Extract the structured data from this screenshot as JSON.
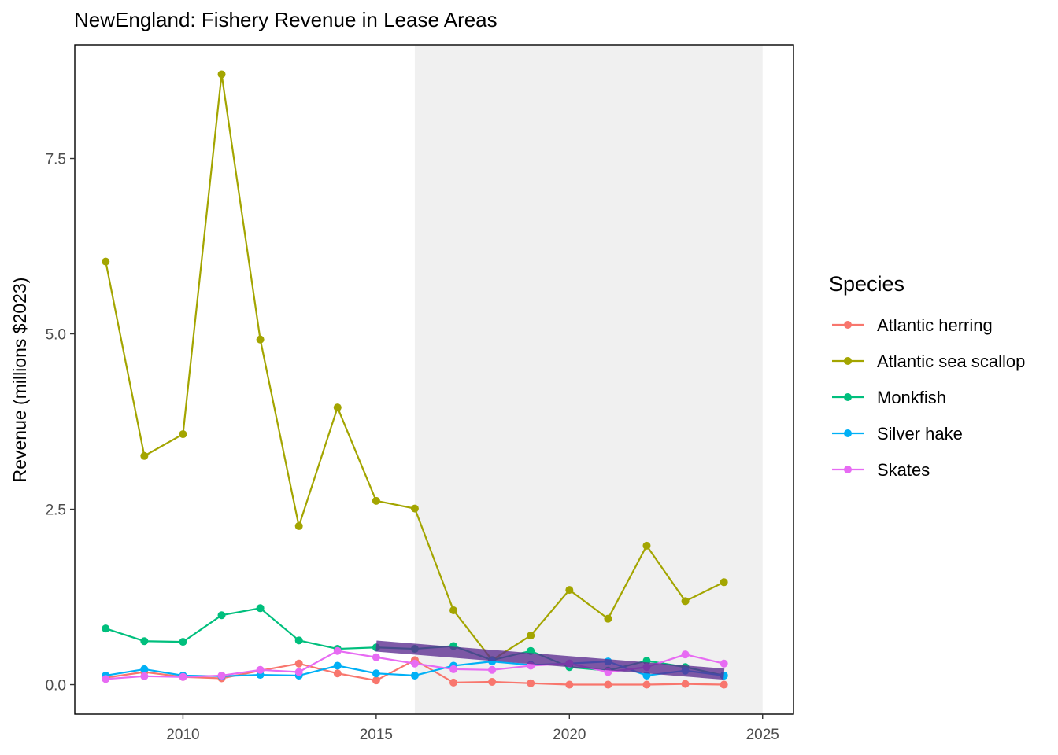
{
  "chart_data": {
    "type": "line",
    "title": "NewEngland: Fishery Revenue in Lease Areas",
    "xlabel": "",
    "ylabel": "Revenue (millions $2023)",
    "xlim": [
      2007.2,
      2025.8
    ],
    "ylim": [
      -0.42,
      9.12
    ],
    "x_ticks": [
      2010,
      2015,
      2020,
      2025
    ],
    "x_tick_labels": [
      "2010",
      "2015",
      "2020",
      "2025"
    ],
    "y_ticks": [
      0,
      2.5,
      5,
      7.5
    ],
    "y_tick_labels": [
      "0.0",
      "2.5",
      "5.0",
      "7.5"
    ],
    "shaded_region": {
      "x_start": 2016,
      "x_end": 2025,
      "color": "#f0f0f0"
    },
    "legend": {
      "title": "Species",
      "position": "right"
    },
    "x": [
      2008,
      2009,
      2010,
      2011,
      2012,
      2013,
      2014,
      2015,
      2016,
      2017,
      2018,
      2019,
      2020,
      2021,
      2022,
      2023,
      2024
    ],
    "series": [
      {
        "name": "Atlantic herring",
        "color": "#F8766D",
        "values": [
          0.1,
          0.18,
          0.11,
          0.09,
          0.2,
          0.3,
          0.16,
          0.06,
          0.35,
          0.03,
          0.04,
          0.02,
          0.0,
          0.0,
          0.0,
          0.01,
          0.0
        ]
      },
      {
        "name": "Atlantic sea scallop",
        "color": "#A3A500",
        "values": [
          6.03,
          3.26,
          3.57,
          8.7,
          4.92,
          2.26,
          3.95,
          2.62,
          2.51,
          1.06,
          0.35,
          0.7,
          1.35,
          0.94,
          1.98,
          1.19,
          1.46
        ]
      },
      {
        "name": "Monkfish",
        "color": "#00BF7D",
        "values": [
          0.8,
          0.62,
          0.61,
          0.99,
          1.09,
          0.63,
          0.51,
          0.53,
          0.51,
          0.55,
          0.35,
          0.48,
          0.25,
          0.2,
          0.34,
          0.25,
          0.13
        ]
      },
      {
        "name": "Silver hake",
        "color": "#00B0F6",
        "values": [
          0.13,
          0.22,
          0.13,
          0.12,
          0.14,
          0.13,
          0.27,
          0.16,
          0.13,
          0.27,
          0.33,
          0.28,
          0.3,
          0.33,
          0.13,
          0.2,
          0.13
        ]
      },
      {
        "name": "Skates",
        "color": "#E76BF3",
        "values": [
          0.08,
          0.12,
          0.11,
          0.13,
          0.21,
          0.18,
          0.48,
          0.39,
          0.3,
          0.22,
          0.21,
          0.27,
          0.3,
          0.18,
          0.25,
          0.43,
          0.3
        ]
      }
    ],
    "trend_line": {
      "x": [
        2015,
        2024
      ],
      "y": [
        0.55,
        0.15
      ],
      "color": "#5B2C8F"
    }
  }
}
